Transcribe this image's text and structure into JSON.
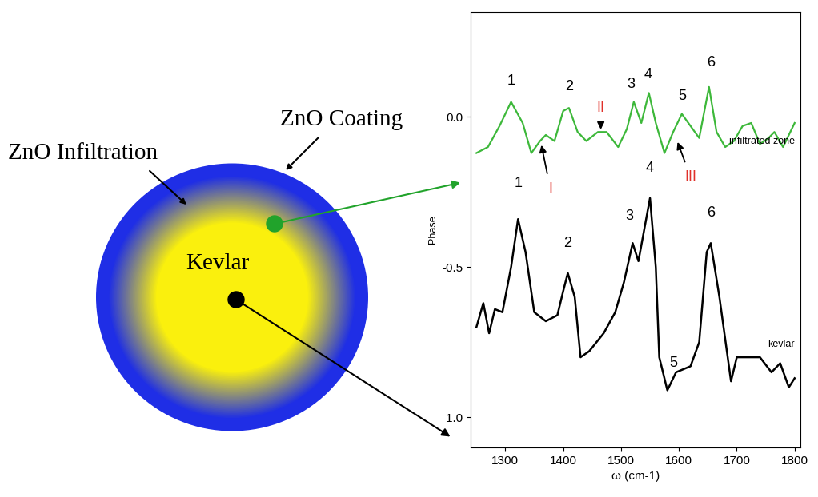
{
  "diagram": {
    "labels": {
      "coating": "ZnO Coating",
      "infiltration": "ZnO Infiltration",
      "core": "Kevlar"
    }
  },
  "chart_data": {
    "type": "line",
    "xlabel": "ω (cm-1)",
    "ylabel": "Phase",
    "xlim": [
      1240,
      1810
    ],
    "ylim": [
      -1.1,
      0.35
    ],
    "xticks": [
      1300,
      1400,
      1500,
      1600,
      1700,
      1800
    ],
    "yticks": [
      {
        "value": 0,
        "label": "0.0"
      },
      -0.5,
      {
        "value": -1,
        "label": "-1.0"
      }
    ],
    "series": [
      {
        "name": "infiltrated zone",
        "color": "#3db83a",
        "x": [
          1250,
          1270,
          1290,
          1310,
          1330,
          1345,
          1360,
          1370,
          1385,
          1400,
          1410,
          1425,
          1440,
          1460,
          1475,
          1495,
          1510,
          1522,
          1535,
          1548,
          1560,
          1575,
          1590,
          1605,
          1620,
          1635,
          1652,
          1665,
          1680,
          1695,
          1710,
          1725,
          1740,
          1755,
          1765,
          1780,
          1800
        ],
        "values": [
          -0.12,
          -0.1,
          -0.03,
          0.05,
          -0.02,
          -0.12,
          -0.08,
          -0.06,
          -0.08,
          0.02,
          0.03,
          -0.05,
          -0.08,
          -0.05,
          -0.05,
          -0.1,
          -0.04,
          0.05,
          -0.02,
          0.08,
          -0.02,
          -0.12,
          -0.05,
          0.01,
          -0.03,
          -0.07,
          0.1,
          -0.05,
          -0.1,
          -0.08,
          -0.03,
          -0.02,
          -0.09,
          -0.07,
          -0.05,
          -0.1,
          -0.02
        ]
      },
      {
        "name": "kevlar",
        "color": "#000000",
        "x": [
          1250,
          1262,
          1272,
          1282,
          1295,
          1310,
          1322,
          1335,
          1350,
          1370,
          1390,
          1400,
          1408,
          1420,
          1430,
          1445,
          1470,
          1490,
          1505,
          1520,
          1530,
          1550,
          1560,
          1566,
          1580,
          1595,
          1620,
          1635,
          1648,
          1655,
          1670,
          1690,
          1700,
          1720,
          1740,
          1760,
          1775,
          1790,
          1800
        ],
        "values": [
          -0.7,
          -0.62,
          -0.72,
          -0.64,
          -0.65,
          -0.5,
          -0.34,
          -0.45,
          -0.65,
          -0.68,
          -0.66,
          -0.58,
          -0.52,
          -0.6,
          -0.8,
          -0.78,
          -0.72,
          -0.65,
          -0.55,
          -0.42,
          -0.48,
          -0.27,
          -0.5,
          -0.8,
          -0.91,
          -0.85,
          -0.83,
          -0.75,
          -0.45,
          -0.42,
          -0.6,
          -0.88,
          -0.8,
          -0.8,
          -0.8,
          -0.85,
          -0.82,
          -0.9,
          -0.87
        ]
      }
    ],
    "annotations": [
      {
        "text": "1",
        "x": 1310,
        "y": 0.12,
        "color": "#000000"
      },
      {
        "text": "2",
        "x": 1410,
        "y": 0.1,
        "color": "#000000"
      },
      {
        "text": "3",
        "x": 1517,
        "y": 0.11,
        "color": "#000000"
      },
      {
        "text": "4",
        "x": 1547,
        "y": 0.14,
        "color": "#000000"
      },
      {
        "text": "5",
        "x": 1605,
        "y": 0.07,
        "color": "#000000"
      },
      {
        "text": "6",
        "x": 1655,
        "y": 0.18,
        "color": "#000000"
      },
      {
        "text": "I",
        "x": 1378,
        "y": -0.24,
        "color": "#e0302a",
        "arrow_to": [
          1362,
          -0.09
        ]
      },
      {
        "text": "II",
        "x": 1465,
        "y": 0.03,
        "color": "#e0302a",
        "arrow_to": [
          1465,
          -0.045
        ]
      },
      {
        "text": "III",
        "x": 1620,
        "y": -0.2,
        "color": "#e0302a",
        "arrow_to": [
          1597,
          -0.08
        ]
      },
      {
        "text": "1",
        "x": 1322,
        "y": -0.22,
        "color": "#000000"
      },
      {
        "text": "2",
        "x": 1408,
        "y": -0.42,
        "color": "#000000"
      },
      {
        "text": "3",
        "x": 1515,
        "y": -0.33,
        "color": "#000000"
      },
      {
        "text": "4",
        "x": 1550,
        "y": -0.17,
        "color": "#000000"
      },
      {
        "text": "5",
        "x": 1590,
        "y": -0.82,
        "color": "#000000"
      },
      {
        "text": "6",
        "x": 1655,
        "y": -0.32,
        "color": "#000000"
      }
    ]
  }
}
